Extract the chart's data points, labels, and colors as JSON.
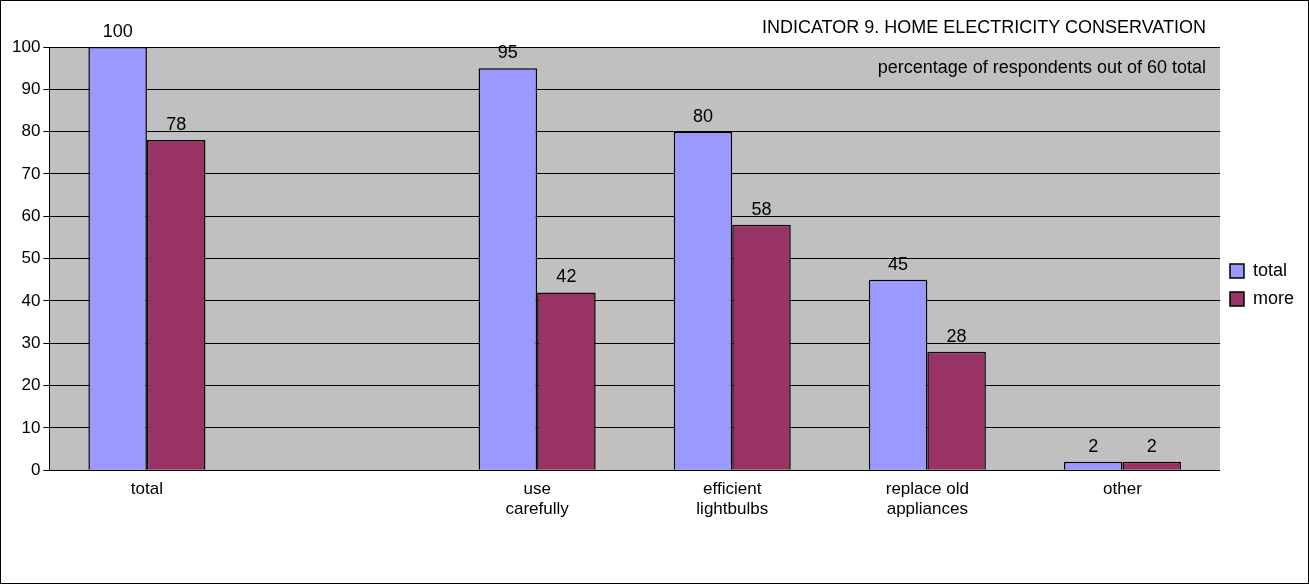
{
  "chart_data": {
    "type": "bar",
    "title": "INDICATOR 9. HOME ELECTRICITY CONSERVATION",
    "subtitle": "percentage of respondents out of 60 total",
    "categories": [
      "total",
      null,
      "use carefully",
      "efficient lightbulbs",
      "replace old appliances",
      "other"
    ],
    "series": [
      {
        "name": "total",
        "color": "#9999ff",
        "values": [
          100,
          null,
          95,
          80,
          45,
          2
        ]
      },
      {
        "name": "more",
        "color": "#993366",
        "values": [
          78,
          null,
          42,
          58,
          28,
          2
        ]
      }
    ],
    "ylim": [
      0,
      100
    ],
    "yticks": [
      0,
      10,
      20,
      30,
      40,
      50,
      60,
      70,
      80,
      90,
      100
    ],
    "grid": "y",
    "legend": "right",
    "data_labels": true
  }
}
